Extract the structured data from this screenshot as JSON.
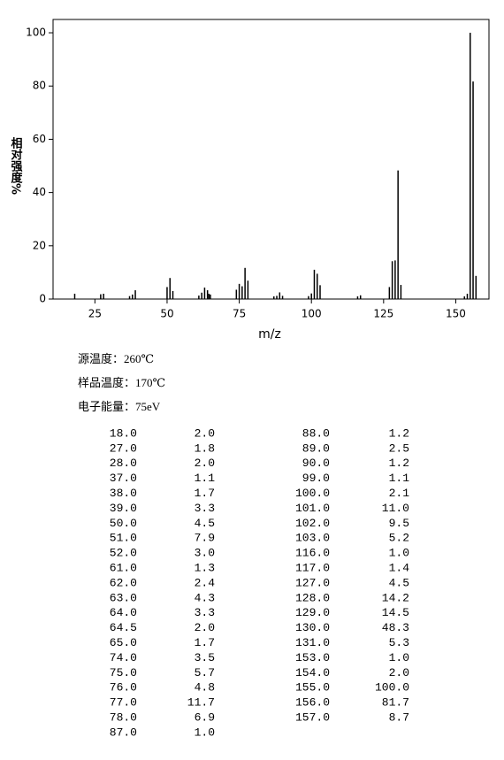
{
  "chart_data": {
    "type": "bar",
    "xlabel": "m/z",
    "ylabel": "相对强度%",
    "color": "#000000",
    "x": [
      18,
      27,
      28,
      37,
      38,
      39,
      50,
      51,
      52,
      61,
      62,
      63,
      64,
      64.5,
      65,
      74,
      75,
      76,
      77,
      78,
      87,
      88,
      89,
      90,
      99,
      100,
      101,
      102,
      103,
      116,
      117,
      127,
      128,
      129,
      130,
      131,
      153,
      154,
      155,
      156,
      157
    ],
    "values": [
      2.0,
      1.8,
      2.0,
      1.1,
      1.7,
      3.3,
      4.5,
      7.9,
      3.0,
      1.3,
      2.4,
      4.3,
      3.3,
      2.0,
      1.7,
      3.5,
      5.7,
      4.8,
      11.7,
      6.9,
      1.0,
      1.2,
      2.5,
      1.2,
      1.1,
      2.1,
      11.0,
      9.5,
      5.2,
      1.0,
      1.4,
      4.5,
      14.2,
      14.5,
      48.3,
      5.3,
      1.0,
      2.0,
      100.0,
      81.7,
      8.7
    ],
    "xlim": [
      10.5,
      161.5
    ],
    "xticks": [
      25,
      50,
      75,
      100,
      125,
      150
    ],
    "ylim": [
      0,
      105
    ],
    "yticks": [
      0,
      20,
      40,
      60,
      80,
      100
    ]
  },
  "conditions": [
    "源温度：260℃",
    "样品温度：170℃",
    "电子能量：75eV"
  ],
  "table": {
    "rows": [
      [
        "18.0",
        "2.0"
      ],
      [
        "27.0",
        "1.8"
      ],
      [
        "28.0",
        "2.0"
      ],
      [
        "37.0",
        "1.1"
      ],
      [
        "38.0",
        "1.7"
      ],
      [
        "39.0",
        "3.3"
      ],
      [
        "50.0",
        "4.5"
      ],
      [
        "51.0",
        "7.9"
      ],
      [
        "52.0",
        "3.0"
      ],
      [
        "61.0",
        "1.3"
      ],
      [
        "62.0",
        "2.4"
      ],
      [
        "63.0",
        "4.3"
      ],
      [
        "64.0",
        "3.3"
      ],
      [
        "64.5",
        "2.0"
      ],
      [
        "65.0",
        "1.7"
      ],
      [
        "74.0",
        "3.5"
      ],
      [
        "75.0",
        "5.7"
      ],
      [
        "76.0",
        "4.8"
      ],
      [
        "77.0",
        "11.7"
      ],
      [
        "78.0",
        "6.9"
      ],
      [
        "87.0",
        "1.0"
      ],
      [
        "88.0",
        "1.2"
      ],
      [
        "89.0",
        "2.5"
      ],
      [
        "90.0",
        "1.2"
      ],
      [
        "99.0",
        "1.1"
      ],
      [
        "100.0",
        "2.1"
      ],
      [
        "101.0",
        "11.0"
      ],
      [
        "102.0",
        "9.5"
      ],
      [
        "103.0",
        "5.2"
      ],
      [
        "116.0",
        "1.0"
      ],
      [
        "117.0",
        "1.4"
      ],
      [
        "127.0",
        "4.5"
      ],
      [
        "128.0",
        "14.2"
      ],
      [
        "129.0",
        "14.5"
      ],
      [
        "130.0",
        "48.3"
      ],
      [
        "131.0",
        "5.3"
      ],
      [
        "153.0",
        "1.0"
      ],
      [
        "154.0",
        "2.0"
      ],
      [
        "155.0",
        "100.0"
      ],
      [
        "156.0",
        "81.7"
      ],
      [
        "157.0",
        "8.7"
      ]
    ]
  }
}
